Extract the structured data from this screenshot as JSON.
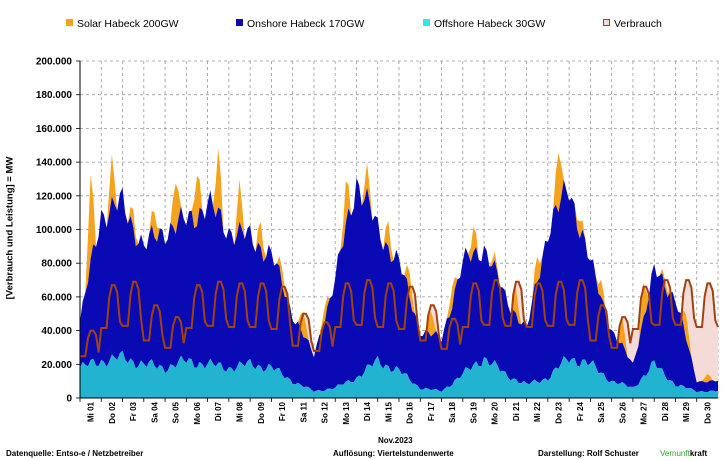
{
  "chart_data": {
    "type": "area",
    "ylabel": "[Verbrauch und Leistung] =  MW",
    "xlabel": "Nov.2023",
    "ylim": [
      0,
      200000
    ],
    "yticks": [
      "0",
      "20.000",
      "40.000",
      "60.000",
      "80.000",
      "100.000",
      "120.000",
      "140.000",
      "160.000",
      "180.000",
      "200.000"
    ],
    "legend_position": "top",
    "categories": [
      "Mi 01",
      "Do 02",
      "Fr 03",
      "Sa 04",
      "So 05",
      "Mo 06",
      "Di 07",
      "Mi 08",
      "Do 09",
      "Fr 10",
      "Sa 11",
      "So 12",
      "Mo 13",
      "Di 14",
      "Mi 15",
      "Do 16",
      "Fr 17",
      "Sa 18",
      "So 19",
      "Mo 20",
      "Di 21",
      "Mi 22",
      "Do 23",
      "Fr 24",
      "Sa 25",
      "So 26",
      "Mo 27",
      "Di 28",
      "Mi 29",
      "Do 30"
    ],
    "series": [
      {
        "name": "Offshore Habeck 30GW",
        "color": "#21b3cf",
        "values": [
          18000,
          22000,
          24000,
          20000,
          18000,
          22000,
          20000,
          18000,
          20000,
          18000,
          10000,
          4000,
          6000,
          12000,
          22000,
          16000,
          6000,
          4000,
          14000,
          24000,
          14000,
          8000,
          12000,
          24000,
          20000,
          10000,
          6000,
          20000,
          8000,
          4000
        ]
      },
      {
        "name": "Onshore Habeck 170GW",
        "color": "#0a0ab4",
        "values": [
          45000,
          110000,
          115000,
          90000,
          100000,
          105000,
          115000,
          100000,
          95000,
          85000,
          50000,
          25000,
          70000,
          130000,
          100000,
          80000,
          40000,
          35000,
          80000,
          90000,
          60000,
          40000,
          100000,
          125000,
          80000,
          40000,
          20000,
          75000,
          60000,
          10000
        ]
      },
      {
        "name": "Solar Habeck 200GW",
        "color": "#f5a21c",
        "values": [
          95000,
          135000,
          125000,
          105000,
          130000,
          135000,
          150000,
          125000,
          110000,
          95000,
          65000,
          35000,
          95000,
          145000,
          115000,
          95000,
          55000,
          48000,
          95000,
          95000,
          75000,
          55000,
          135000,
          135000,
          90000,
          55000,
          40000,
          80000,
          75000,
          15000
        ]
      },
      {
        "name": "Verbrauch",
        "color": "#a0420f",
        "values": [
          40000,
          67000,
          69000,
          55000,
          48000,
          67000,
          69000,
          68000,
          68000,
          66000,
          50000,
          45000,
          68000,
          70000,
          68000,
          66000,
          55000,
          47000,
          68000,
          70000,
          69000,
          68000,
          69000,
          70000,
          55000,
          48000,
          66000,
          70000,
          70000,
          68000
        ]
      }
    ]
  },
  "legend": {
    "solar": "Solar Habeck 200GW",
    "onshore": "Onshore Habeck 170GW",
    "offshore": "Offshore Habeck 30GW",
    "verbrauch": "Verbrauch"
  },
  "footer": {
    "source": "Datenquelle: Entso-e  / Netzbetreiber",
    "resolution": "Auflösung: Viertelstundenwerte",
    "author": "Darstellung:  Rolf Schuster",
    "brand_1": "Vernunft",
    "brand_2": "kraft"
  },
  "colors": {
    "solar": "#f5a21c",
    "onshore": "#0a0ab4",
    "offshore": "#21b3cf",
    "verbrauch": "#a0420f",
    "deficit_fill": "#f5dbd8",
    "brand_green": "#2ea82e"
  }
}
